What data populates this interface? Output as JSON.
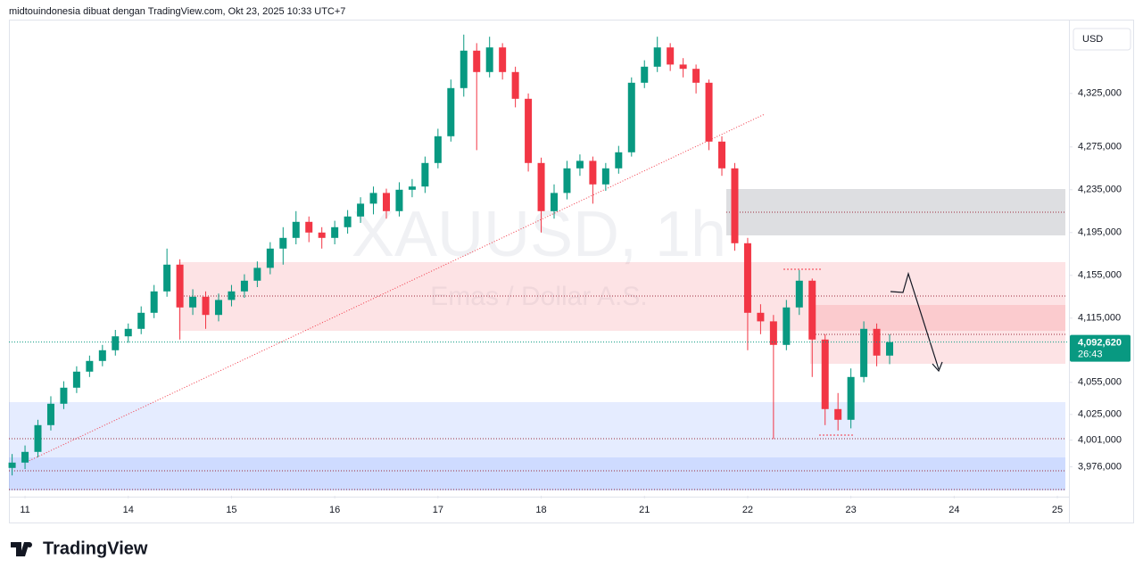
{
  "header": "midtouindonesia dibuat dengan TradingView.com, Okt 23, 2025 10:33 UTC+7",
  "logo": "TradingView",
  "chart_data": {
    "type": "candlestick",
    "symbol": "XAUUSD, 1h",
    "description": "Emas / Dollar A.S.",
    "currency": "USD",
    "up_color": "#089981",
    "down_color": "#f23645",
    "last_price": {
      "value": 4092.62,
      "label": "4,092,620"
    },
    "countdown": "26:43",
    "xlim": [
      -0.156,
      10.112
    ],
    "xticks": [
      {
        "value": 0,
        "label": "11"
      },
      {
        "value": 1,
        "label": "14"
      },
      {
        "value": 2,
        "label": "15"
      },
      {
        "value": 3,
        "label": "16"
      },
      {
        "value": 4,
        "label": "17"
      },
      {
        "value": 5,
        "label": "18"
      },
      {
        "value": 6,
        "label": "21"
      },
      {
        "value": 7,
        "label": "22"
      },
      {
        "value": 8,
        "label": "23"
      },
      {
        "value": 9,
        "label": "24"
      },
      {
        "value": 10,
        "label": "25"
      }
    ],
    "ylim": [
      3949,
      4389
    ],
    "yticks": [
      {
        "value": 3976,
        "label": "3,976,000"
      },
      {
        "value": 4001,
        "label": "4,001,000"
      },
      {
        "value": 4025,
        "label": "4,025,000"
      },
      {
        "value": 4055,
        "label": "4,055,000"
      },
      {
        "value": 4115,
        "label": "4,115,000"
      },
      {
        "value": 4155,
        "label": "4,155,000"
      },
      {
        "value": 4195,
        "label": "4,195,000"
      },
      {
        "value": 4235,
        "label": "4,235,000"
      },
      {
        "value": 4275,
        "label": "4,275,000"
      },
      {
        "value": 4325,
        "label": "4,325,000"
      }
    ],
    "x": [
      -0.125,
      0,
      0.125,
      0.25,
      0.375,
      0.5,
      0.625,
      0.75,
      0.875,
      1,
      1.125,
      1.25,
      1.375,
      1.5,
      1.625,
      1.75,
      1.875,
      2,
      2.125,
      2.25,
      2.375,
      2.5,
      2.625,
      2.75,
      2.875,
      3,
      3.125,
      3.25,
      3.375,
      3.5,
      3.625,
      3.75,
      3.875,
      4,
      4.125,
      4.25,
      4.375,
      4.5,
      4.625,
      4.75,
      4.875,
      5,
      5.125,
      5.25,
      5.375,
      5.5,
      5.625,
      5.75,
      5.875,
      6,
      6.125,
      6.25,
      6.375,
      6.5,
      6.625,
      6.75,
      6.875,
      7,
      7.125,
      7.25,
      7.375,
      7.5,
      7.625,
      7.75,
      7.875,
      8,
      8.125,
      8.25,
      8.375
    ],
    "open": [
      3975,
      3980,
      3990,
      4015,
      4035,
      4050,
      4065,
      4075,
      4085,
      4098,
      4105,
      4120,
      4140,
      4165,
      4125,
      4135,
      4118,
      4132,
      4140,
      4150,
      4162,
      4180,
      4190,
      4205,
      4195,
      4190,
      4200,
      4210,
      4222,
      4232,
      4215,
      4235,
      4238,
      4260,
      4285,
      4330,
      4365,
      4345,
      4368,
      4345,
      4320,
      4260,
      4215,
      4232,
      4255,
      4262,
      4240,
      4255,
      4270,
      4335,
      4350,
      4368,
      4352,
      4348,
      4335,
      4280,
      4255,
      4185,
      4120,
      4112,
      4090,
      4125,
      4150,
      4095,
      4030,
      4020,
      4060,
      4105,
      4080
    ],
    "high": [
      3988,
      3996,
      4020,
      4042,
      4056,
      4070,
      4080,
      4090,
      4104,
      4110,
      4126,
      4146,
      4180,
      4170,
      4142,
      4140,
      4138,
      4146,
      4156,
      4168,
      4186,
      4200,
      4215,
      4210,
      4200,
      4206,
      4216,
      4228,
      4238,
      4236,
      4242,
      4245,
      4266,
      4292,
      4338,
      4380,
      4372,
      4378,
      4372,
      4350,
      4325,
      4265,
      4240,
      4262,
      4268,
      4266,
      4260,
      4276,
      4340,
      4356,
      4378,
      4372,
      4358,
      4352,
      4338,
      4285,
      4260,
      4190,
      4128,
      4118,
      4132,
      4160,
      4152,
      4100,
      4045,
      4068,
      4112,
      4110,
      4100
    ],
    "low": [
      3968,
      3974,
      3985,
      4010,
      4030,
      4045,
      4060,
      4070,
      4080,
      4092,
      4100,
      4115,
      4135,
      4095,
      4118,
      4105,
      4112,
      4126,
      4134,
      4144,
      4156,
      4165,
      4184,
      4186,
      4180,
      4184,
      4194,
      4204,
      4212,
      4208,
      4210,
      4228,
      4232,
      4255,
      4280,
      4322,
      4272,
      4340,
      4338,
      4312,
      4252,
      4195,
      4208,
      4226,
      4248,
      4222,
      4234,
      4250,
      4266,
      4330,
      4345,
      4346,
      4340,
      4325,
      4272,
      4248,
      4178,
      4085,
      4100,
      4002,
      4085,
      4118,
      4060,
      4015,
      4010,
      4012,
      4055,
      4070,
      4072
    ],
    "close": [
      3980,
      3990,
      4015,
      4035,
      4050,
      4065,
      4075,
      4085,
      4098,
      4105,
      4120,
      4140,
      4165,
      4125,
      4135,
      4118,
      4132,
      4140,
      4150,
      4162,
      4180,
      4190,
      4205,
      4195,
      4190,
      4200,
      4210,
      4222,
      4232,
      4215,
      4235,
      4238,
      4260,
      4285,
      4330,
      4365,
      4345,
      4368,
      4345,
      4320,
      4260,
      4215,
      4232,
      4255,
      4262,
      4240,
      4255,
      4270,
      4335,
      4350,
      4368,
      4352,
      4348,
      4335,
      4280,
      4255,
      4185,
      4120,
      4112,
      4090,
      4125,
      4150,
      4095,
      4030,
      4020,
      4060,
      4105,
      4080,
      4092.62
    ]
  }
}
